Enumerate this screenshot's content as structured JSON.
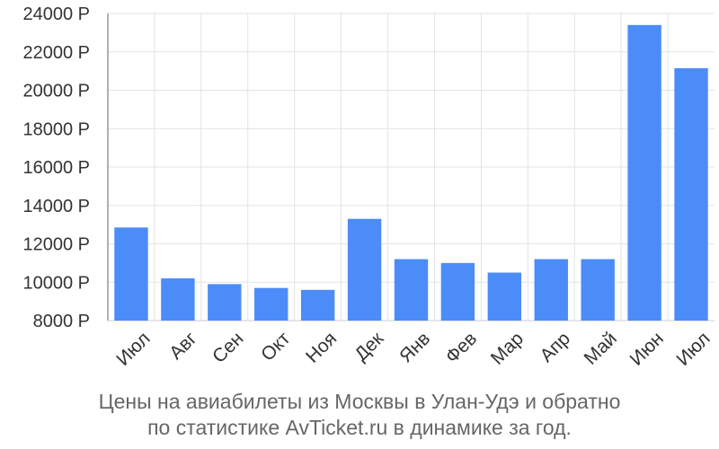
{
  "chart_data": {
    "type": "bar",
    "title": "",
    "xlabel": "",
    "ylabel": "",
    "categories": [
      "Июл",
      "Авг",
      "Сен",
      "Окт",
      "Ноя",
      "Дек",
      "Янв",
      "Фев",
      "Мар",
      "Апр",
      "Май",
      "Июн",
      "Июл"
    ],
    "values": [
      12850,
      10200,
      9900,
      9700,
      9600,
      13300,
      11200,
      11000,
      10500,
      11200,
      11200,
      23400,
      21150
    ],
    "ylim": [
      8000,
      24000
    ],
    "yticks": [
      8000,
      10000,
      12000,
      14000,
      16000,
      18000,
      20000,
      22000,
      24000
    ],
    "y_unit": "Р",
    "bar_color": "#4c8cf8",
    "grid": true,
    "legend": "none"
  },
  "caption": {
    "line1": "Цены на авиабилеты из Москвы в Улан-Удэ и обратно",
    "line2": "по статистике AvTicket.ru в динамике за год."
  }
}
